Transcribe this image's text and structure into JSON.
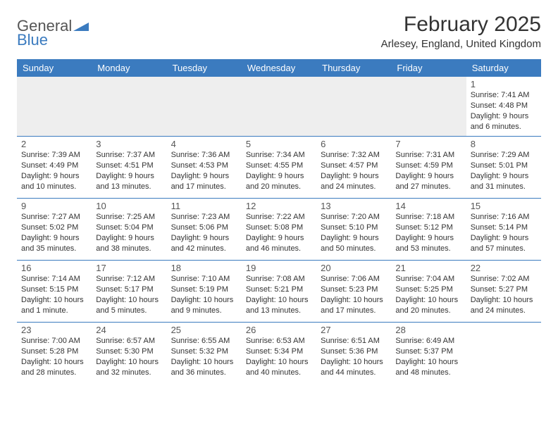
{
  "brand": {
    "part1": "General",
    "part2": "Blue"
  },
  "title": "February 2025",
  "location": "Arlesey, England, United Kingdom",
  "colors": {
    "header_bg": "#3b7bbf",
    "header_text": "#ffffff",
    "rule": "#3b7bbf",
    "body_text": "#333333",
    "muted_row": "#eeeeee"
  },
  "weekdays": [
    "Sunday",
    "Monday",
    "Tuesday",
    "Wednesday",
    "Thursday",
    "Friday",
    "Saturday"
  ],
  "weeks": [
    [
      null,
      null,
      null,
      null,
      null,
      null,
      {
        "n": "1",
        "sunrise": "7:41 AM",
        "sunset": "4:48 PM",
        "daylight": "Daylight: 9 hours and 6 minutes."
      }
    ],
    [
      {
        "n": "2",
        "sunrise": "7:39 AM",
        "sunset": "4:49 PM",
        "daylight": "Daylight: 9 hours and 10 minutes."
      },
      {
        "n": "3",
        "sunrise": "7:37 AM",
        "sunset": "4:51 PM",
        "daylight": "Daylight: 9 hours and 13 minutes."
      },
      {
        "n": "4",
        "sunrise": "7:36 AM",
        "sunset": "4:53 PM",
        "daylight": "Daylight: 9 hours and 17 minutes."
      },
      {
        "n": "5",
        "sunrise": "7:34 AM",
        "sunset": "4:55 PM",
        "daylight": "Daylight: 9 hours and 20 minutes."
      },
      {
        "n": "6",
        "sunrise": "7:32 AM",
        "sunset": "4:57 PM",
        "daylight": "Daylight: 9 hours and 24 minutes."
      },
      {
        "n": "7",
        "sunrise": "7:31 AM",
        "sunset": "4:59 PM",
        "daylight": "Daylight: 9 hours and 27 minutes."
      },
      {
        "n": "8",
        "sunrise": "7:29 AM",
        "sunset": "5:01 PM",
        "daylight": "Daylight: 9 hours and 31 minutes."
      }
    ],
    [
      {
        "n": "9",
        "sunrise": "7:27 AM",
        "sunset": "5:02 PM",
        "daylight": "Daylight: 9 hours and 35 minutes."
      },
      {
        "n": "10",
        "sunrise": "7:25 AM",
        "sunset": "5:04 PM",
        "daylight": "Daylight: 9 hours and 38 minutes."
      },
      {
        "n": "11",
        "sunrise": "7:23 AM",
        "sunset": "5:06 PM",
        "daylight": "Daylight: 9 hours and 42 minutes."
      },
      {
        "n": "12",
        "sunrise": "7:22 AM",
        "sunset": "5:08 PM",
        "daylight": "Daylight: 9 hours and 46 minutes."
      },
      {
        "n": "13",
        "sunrise": "7:20 AM",
        "sunset": "5:10 PM",
        "daylight": "Daylight: 9 hours and 50 minutes."
      },
      {
        "n": "14",
        "sunrise": "7:18 AM",
        "sunset": "5:12 PM",
        "daylight": "Daylight: 9 hours and 53 minutes."
      },
      {
        "n": "15",
        "sunrise": "7:16 AM",
        "sunset": "5:14 PM",
        "daylight": "Daylight: 9 hours and 57 minutes."
      }
    ],
    [
      {
        "n": "16",
        "sunrise": "7:14 AM",
        "sunset": "5:15 PM",
        "daylight": "Daylight: 10 hours and 1 minute."
      },
      {
        "n": "17",
        "sunrise": "7:12 AM",
        "sunset": "5:17 PM",
        "daylight": "Daylight: 10 hours and 5 minutes."
      },
      {
        "n": "18",
        "sunrise": "7:10 AM",
        "sunset": "5:19 PM",
        "daylight": "Daylight: 10 hours and 9 minutes."
      },
      {
        "n": "19",
        "sunrise": "7:08 AM",
        "sunset": "5:21 PM",
        "daylight": "Daylight: 10 hours and 13 minutes."
      },
      {
        "n": "20",
        "sunrise": "7:06 AM",
        "sunset": "5:23 PM",
        "daylight": "Daylight: 10 hours and 17 minutes."
      },
      {
        "n": "21",
        "sunrise": "7:04 AM",
        "sunset": "5:25 PM",
        "daylight": "Daylight: 10 hours and 20 minutes."
      },
      {
        "n": "22",
        "sunrise": "7:02 AM",
        "sunset": "5:27 PM",
        "daylight": "Daylight: 10 hours and 24 minutes."
      }
    ],
    [
      {
        "n": "23",
        "sunrise": "7:00 AM",
        "sunset": "5:28 PM",
        "daylight": "Daylight: 10 hours and 28 minutes."
      },
      {
        "n": "24",
        "sunrise": "6:57 AM",
        "sunset": "5:30 PM",
        "daylight": "Daylight: 10 hours and 32 minutes."
      },
      {
        "n": "25",
        "sunrise": "6:55 AM",
        "sunset": "5:32 PM",
        "daylight": "Daylight: 10 hours and 36 minutes."
      },
      {
        "n": "26",
        "sunrise": "6:53 AM",
        "sunset": "5:34 PM",
        "daylight": "Daylight: 10 hours and 40 minutes."
      },
      {
        "n": "27",
        "sunrise": "6:51 AM",
        "sunset": "5:36 PM",
        "daylight": "Daylight: 10 hours and 44 minutes."
      },
      {
        "n": "28",
        "sunrise": "6:49 AM",
        "sunset": "5:37 PM",
        "daylight": "Daylight: 10 hours and 48 minutes."
      },
      null
    ]
  ],
  "labels": {
    "sunrise_prefix": "Sunrise: ",
    "sunset_prefix": "Sunset: "
  }
}
